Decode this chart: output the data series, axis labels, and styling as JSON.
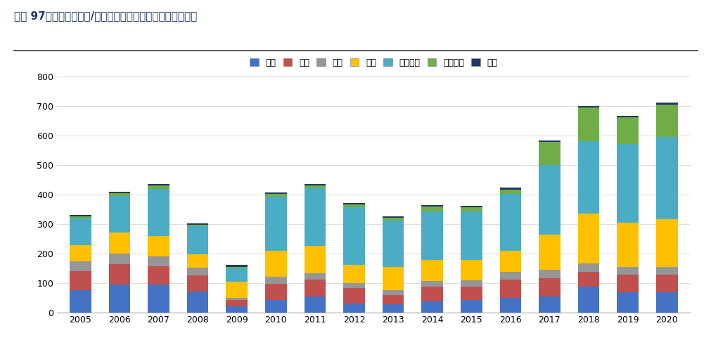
{
  "title": "图表 97：全球各个国家/地区半导体设备市场规模（亿美元）",
  "years": [
    2005,
    2006,
    2007,
    2008,
    2009,
    2010,
    2011,
    2012,
    2013,
    2014,
    2015,
    2016,
    2017,
    2018,
    2019,
    2020
  ],
  "legend_labels": [
    "日本",
    "北美",
    "欧洲",
    "韩国",
    "中国台湾",
    "中国大陆",
    "其他"
  ],
  "colors": [
    "#4472C4",
    "#C0504D",
    "#969696",
    "#FFC000",
    "#4BACC6",
    "#70AD47",
    "#1F3864"
  ],
  "segments": {
    "日本": [
      75,
      95,
      95,
      70,
      20,
      42,
      55,
      30,
      28,
      38,
      42,
      48,
      55,
      88,
      68,
      68
    ],
    "北美": [
      65,
      68,
      62,
      55,
      22,
      55,
      55,
      52,
      30,
      48,
      46,
      62,
      60,
      50,
      60,
      60
    ],
    "欧洲": [
      33,
      37,
      33,
      27,
      8,
      23,
      23,
      18,
      17,
      20,
      20,
      27,
      30,
      28,
      27,
      27
    ],
    "韩国": [
      55,
      70,
      68,
      45,
      55,
      88,
      92,
      62,
      80,
      72,
      70,
      72,
      118,
      168,
      150,
      160
    ],
    "中国台湾": [
      90,
      125,
      160,
      95,
      45,
      185,
      195,
      195,
      155,
      165,
      163,
      193,
      235,
      245,
      265,
      280
    ],
    "中国大陆": [
      7,
      8,
      12,
      5,
      5,
      8,
      10,
      8,
      10,
      15,
      15,
      15,
      80,
      115,
      90,
      110
    ],
    "其他": [
      5,
      5,
      5,
      5,
      5,
      5,
      5,
      5,
      5,
      5,
      5,
      5,
      5,
      5,
      5,
      5
    ]
  },
  "ylim": [
    0,
    800
  ],
  "yticks": [
    0,
    100,
    200,
    300,
    400,
    500,
    600,
    700,
    800
  ],
  "background_color": "#FFFFFF",
  "bar_width": 0.55
}
